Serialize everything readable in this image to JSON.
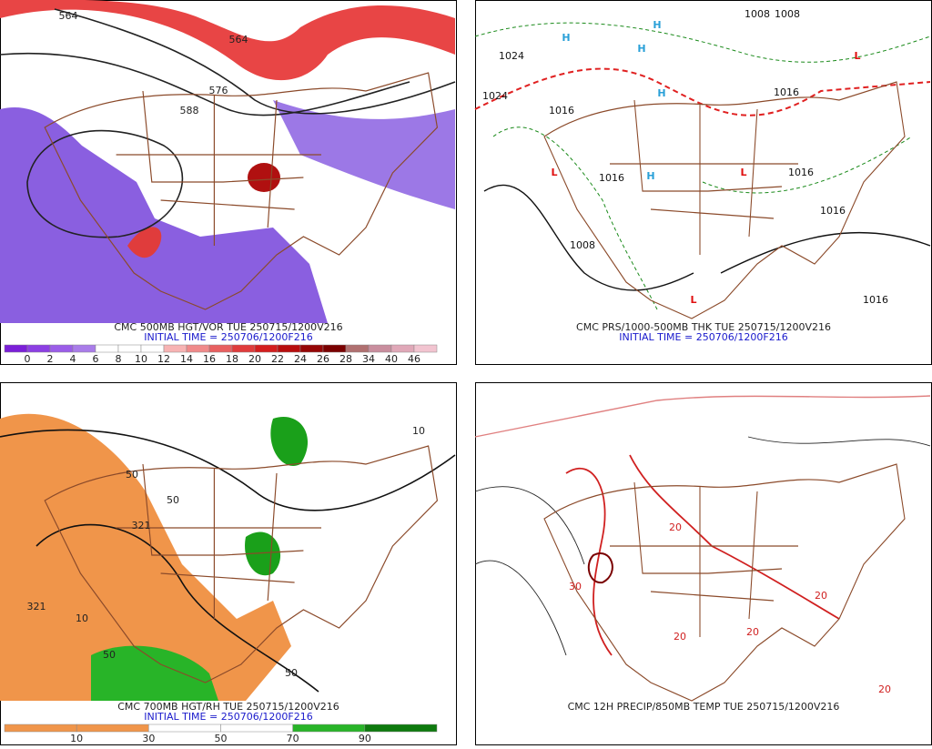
{
  "panels": [
    {
      "title": "CMC 500MB HGT/VOR TUE 250715/1200V216",
      "initial_time": "INITIAL TIME = 250706/1200F216",
      "colorbar": {
        "labels": [
          0,
          2,
          4,
          6,
          8,
          10,
          12,
          14,
          16,
          18,
          20,
          22,
          24,
          26,
          28,
          34,
          40,
          46
        ],
        "colors": [
          "#7b1fd8",
          "#8c3fe3",
          "#9b5de8",
          "#a97ce9",
          "#ffffff",
          "#ffffff",
          "#ffffff",
          "#f7b3b3",
          "#f08a8a",
          "#e86060",
          "#e03c3c",
          "#d41e1e",
          "#b80d0d",
          "#960606",
          "#7a0000",
          "#b07070",
          "#c98e9e",
          "#e0a8b8",
          "#f2c4d0"
        ]
      },
      "labels": [
        "564",
        "564",
        "576",
        "588"
      ]
    },
    {
      "title": "CMC PRS/1000-500MB THK TUE 250715/1200V216",
      "initial_time": "INITIAL TIME = 250706/1200F216",
      "labels": [
        "1024",
        "1024",
        "1016",
        "1016",
        "1016",
        "1008",
        "1008",
        "1008",
        "1016",
        "1016",
        "1016",
        "H",
        "H",
        "H",
        "H",
        "H",
        "L",
        "L",
        "L",
        "L"
      ]
    },
    {
      "title": "CMC 700MB HGT/RH TUE 250715/1200V216",
      "initial_time": "INITIAL TIME = 250706/1200F216",
      "colorbar": {
        "labels": [
          10,
          30,
          50,
          70,
          90
        ],
        "colors": [
          "#f0954a",
          "#f0954a",
          "#ffffff",
          "#ffffff",
          "#28b428",
          "#0e7a0e"
        ]
      },
      "labels": [
        "50",
        "50",
        "321",
        "321",
        "10",
        "10",
        "50",
        "50"
      ]
    },
    {
      "title": "CMC 12H PRECIP/850MB TEMP TUE 250715/1200V216",
      "labels": [
        "20",
        "20",
        "30",
        "20",
        "20",
        "20"
      ]
    }
  ]
}
